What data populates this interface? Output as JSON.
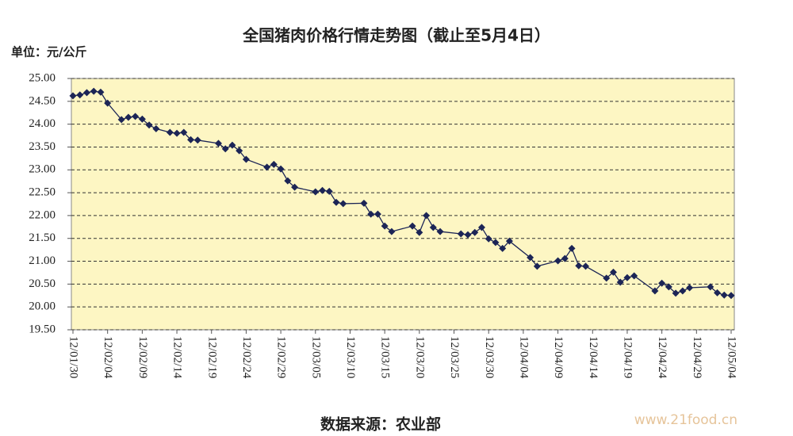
{
  "chart_data": {
    "type": "line",
    "title": "全国猪肉价格行情走势图（截止至5月4日）",
    "y_label": "单位：元/公斤",
    "source": "数据来源：农业部",
    "watermark": "www.21food.cn",
    "x": [
      "12/01/30",
      "12/01/31",
      "12/02/01",
      "12/02/02",
      "12/02/03",
      "12/02/04",
      "12/02/06",
      "12/02/07",
      "12/02/08",
      "12/02/09",
      "12/02/10",
      "12/02/11",
      "12/02/13",
      "12/02/14",
      "12/02/15",
      "12/02/16",
      "12/02/17",
      "12/02/20",
      "12/02/21",
      "12/02/22",
      "12/02/23",
      "12/02/24",
      "12/02/27",
      "12/02/28",
      "12/02/29",
      "12/03/01",
      "12/03/02",
      "12/03/05",
      "12/03/06",
      "12/03/07",
      "12/03/08",
      "12/03/09",
      "12/03/12",
      "12/03/13",
      "12/03/14",
      "12/03/15",
      "12/03/16",
      "12/03/19",
      "12/03/20",
      "12/03/21",
      "12/03/22",
      "12/03/23",
      "12/03/26",
      "12/03/27",
      "12/03/28",
      "12/03/29",
      "12/03/30",
      "12/03/31",
      "12/04/01",
      "12/04/02",
      "12/04/05",
      "12/04/06",
      "12/04/09",
      "12/04/10",
      "12/04/11",
      "12/04/12",
      "12/04/13",
      "12/04/16",
      "12/04/17",
      "12/04/18",
      "12/04/19",
      "12/04/20",
      "12/04/23",
      "12/04/24",
      "12/04/25",
      "12/04/26",
      "12/04/27",
      "12/04/28",
      "12/05/01",
      "12/05/02",
      "12/05/03",
      "12/05/04"
    ],
    "series": [
      {
        "name": "猪肉价格",
        "color": "#1c2556",
        "values": [
          24.62,
          24.64,
          24.69,
          24.72,
          24.7,
          24.46,
          24.1,
          24.15,
          24.17,
          24.11,
          23.98,
          23.9,
          23.82,
          23.8,
          23.82,
          23.66,
          23.65,
          23.58,
          23.46,
          23.54,
          23.42,
          23.23,
          23.06,
          23.12,
          23.02,
          22.76,
          22.62,
          22.52,
          22.55,
          22.53,
          22.29,
          22.26,
          22.27,
          22.03,
          22.03,
          21.77,
          21.65,
          21.77,
          21.63,
          22.0,
          21.74,
          21.65,
          21.6,
          21.58,
          21.63,
          21.74,
          21.49,
          21.41,
          21.28,
          21.44,
          21.08,
          20.89,
          21.01,
          21.06,
          21.28,
          20.9,
          20.89,
          20.63,
          20.76,
          20.54,
          20.64,
          20.68,
          20.35,
          20.52,
          20.44,
          20.3,
          20.35,
          20.42,
          20.44,
          20.31,
          20.26,
          20.25
        ]
      }
    ],
    "xlim": [
      "12/01/30",
      "12/05/04"
    ],
    "xticks": [
      "12/01/30",
      "12/02/04",
      "12/02/09",
      "12/02/14",
      "12/02/19",
      "12/02/24",
      "12/02/29",
      "12/03/05",
      "12/03/10",
      "12/03/15",
      "12/03/20",
      "12/03/25",
      "12/03/30",
      "12/04/04",
      "12/04/09",
      "12/04/14",
      "12/04/19",
      "12/04/24",
      "12/04/29",
      "12/05/04"
    ],
    "ylim": [
      19.5,
      25
    ],
    "yticks": [
      {
        "value": 19.5,
        "label": "19.50"
      },
      {
        "value": 20,
        "label": "20.00"
      },
      {
        "value": 20.5,
        "label": "20.50"
      },
      {
        "value": 21,
        "label": "21.00"
      },
      {
        "value": 21.5,
        "label": "21.50"
      },
      {
        "value": 22,
        "label": "22.00"
      },
      {
        "value": 22.5,
        "label": "22.50"
      },
      {
        "value": 23,
        "label": "23.00"
      },
      {
        "value": 23.5,
        "label": "23.50"
      },
      {
        "value": 24,
        "label": "24.00"
      },
      {
        "value": 24.5,
        "label": "24.50"
      },
      {
        "value": 25,
        "label": "25.00"
      }
    ],
    "grid": true,
    "marker": "diamond"
  }
}
